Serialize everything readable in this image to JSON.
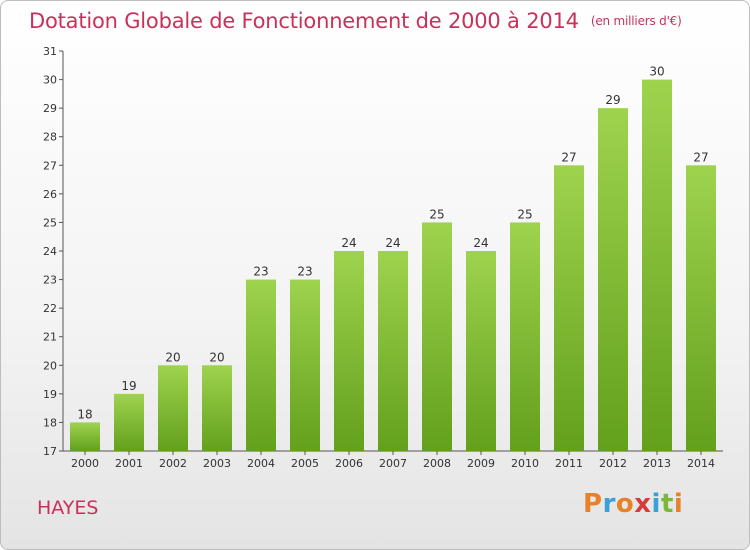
{
  "header": {
    "title": "Dotation Globale de Fonctionnement de 2000 à 2014",
    "subtitle": "(en milliers d'€)"
  },
  "footer": {
    "commune": "HAYES",
    "logo_text": "Proxiti",
    "logo_colors": [
      "#e6822a",
      "#3aa0d8",
      "#e6822a",
      "#d83a3a",
      "#3aa0d8",
      "#7ab83a",
      "#e6822a"
    ]
  },
  "colors": {
    "bar_light": "#9ed34e",
    "bar_dark": "#63a01c",
    "title": "#c8325a"
  },
  "chart_data": {
    "type": "bar",
    "title": "Dotation Globale de Fonctionnement de 2000 à 2014",
    "subtitle": "(en milliers d'€)",
    "categories": [
      "2000",
      "2001",
      "2002",
      "2003",
      "2004",
      "2005",
      "2006",
      "2007",
      "2008",
      "2009",
      "2010",
      "2011",
      "2012",
      "2013",
      "2014"
    ],
    "values": [
      18,
      19,
      20,
      20,
      23,
      23,
      24,
      24,
      25,
      24,
      25,
      27,
      29,
      30,
      27
    ],
    "ylim": [
      17,
      31
    ],
    "yticks": [
      17,
      18,
      19,
      20,
      21,
      22,
      23,
      24,
      25,
      26,
      27,
      28,
      29,
      30,
      31
    ],
    "grid": false,
    "data_labels": true
  }
}
